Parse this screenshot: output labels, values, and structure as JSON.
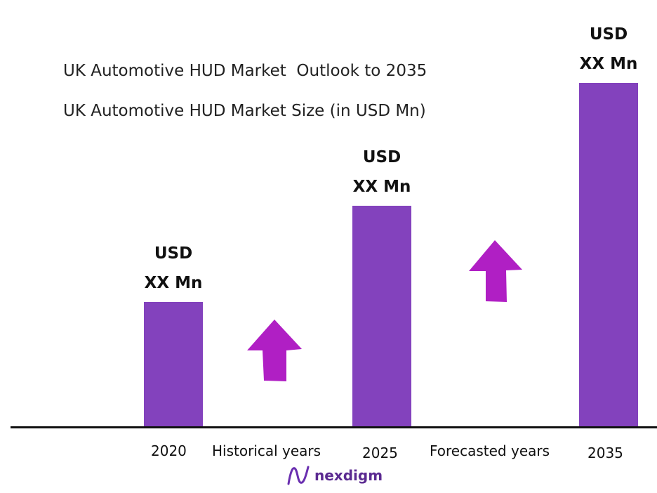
{
  "titles": {
    "line1": "UK Automotive HUD Market  Outlook to 2035",
    "line2": "UK Automotive HUD Market Size (in USD Mn)"
  },
  "chart_data": {
    "type": "bar",
    "categories": [
      "2020",
      "2025",
      "2035"
    ],
    "values": [
      1.0,
      1.76,
      2.73
    ],
    "value_labels": [
      {
        "line1": "USD",
        "line2": "XX Mn"
      },
      {
        "line1": "USD",
        "line2": "XX Mn"
      },
      {
        "line1": "USD",
        "line2": "XX Mn"
      }
    ],
    "period_labels": [
      "Historical years",
      "Forecasted years"
    ],
    "bar_color": "#8342bd",
    "arrow_color": "#b01fc4",
    "ylim": [
      0,
      2.73
    ]
  },
  "brand": {
    "name": "nexdigm",
    "icon": "nexdigm-logo-icon",
    "color": "#5b2a91"
  }
}
